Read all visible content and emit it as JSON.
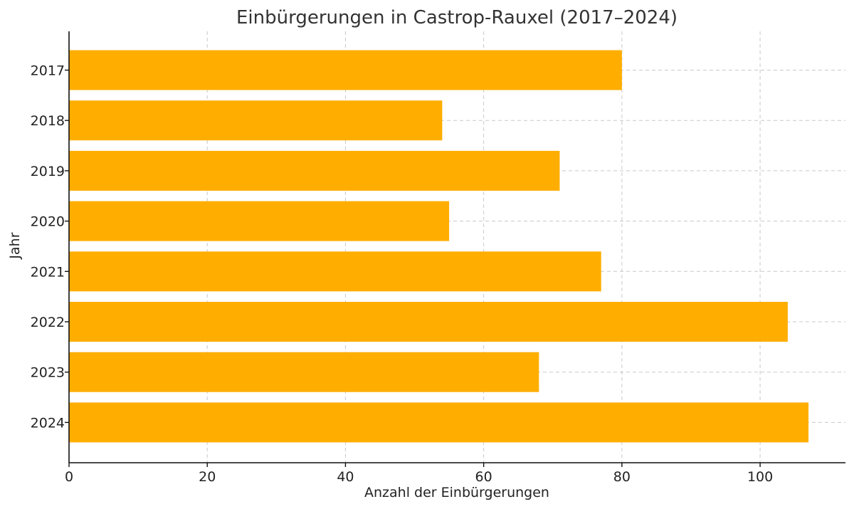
{
  "chart_data": {
    "type": "bar",
    "orientation": "horizontal",
    "title": "Einbürgerungen in Castrop-Rauxel (2017–2024)",
    "xlabel": "Anzahl der Einbürgerungen",
    "ylabel": "Jahr",
    "categories": [
      "2017",
      "2018",
      "2019",
      "2020",
      "2021",
      "2022",
      "2023",
      "2024"
    ],
    "values": [
      80,
      54,
      71,
      55,
      77,
      104,
      68,
      107
    ],
    "xlim": [
      0,
      112.35
    ],
    "xticks": [
      0,
      20,
      40,
      60,
      80,
      100
    ],
    "bar_color": "#FFAE00",
    "grid": true,
    "grid_style": "dashed"
  }
}
